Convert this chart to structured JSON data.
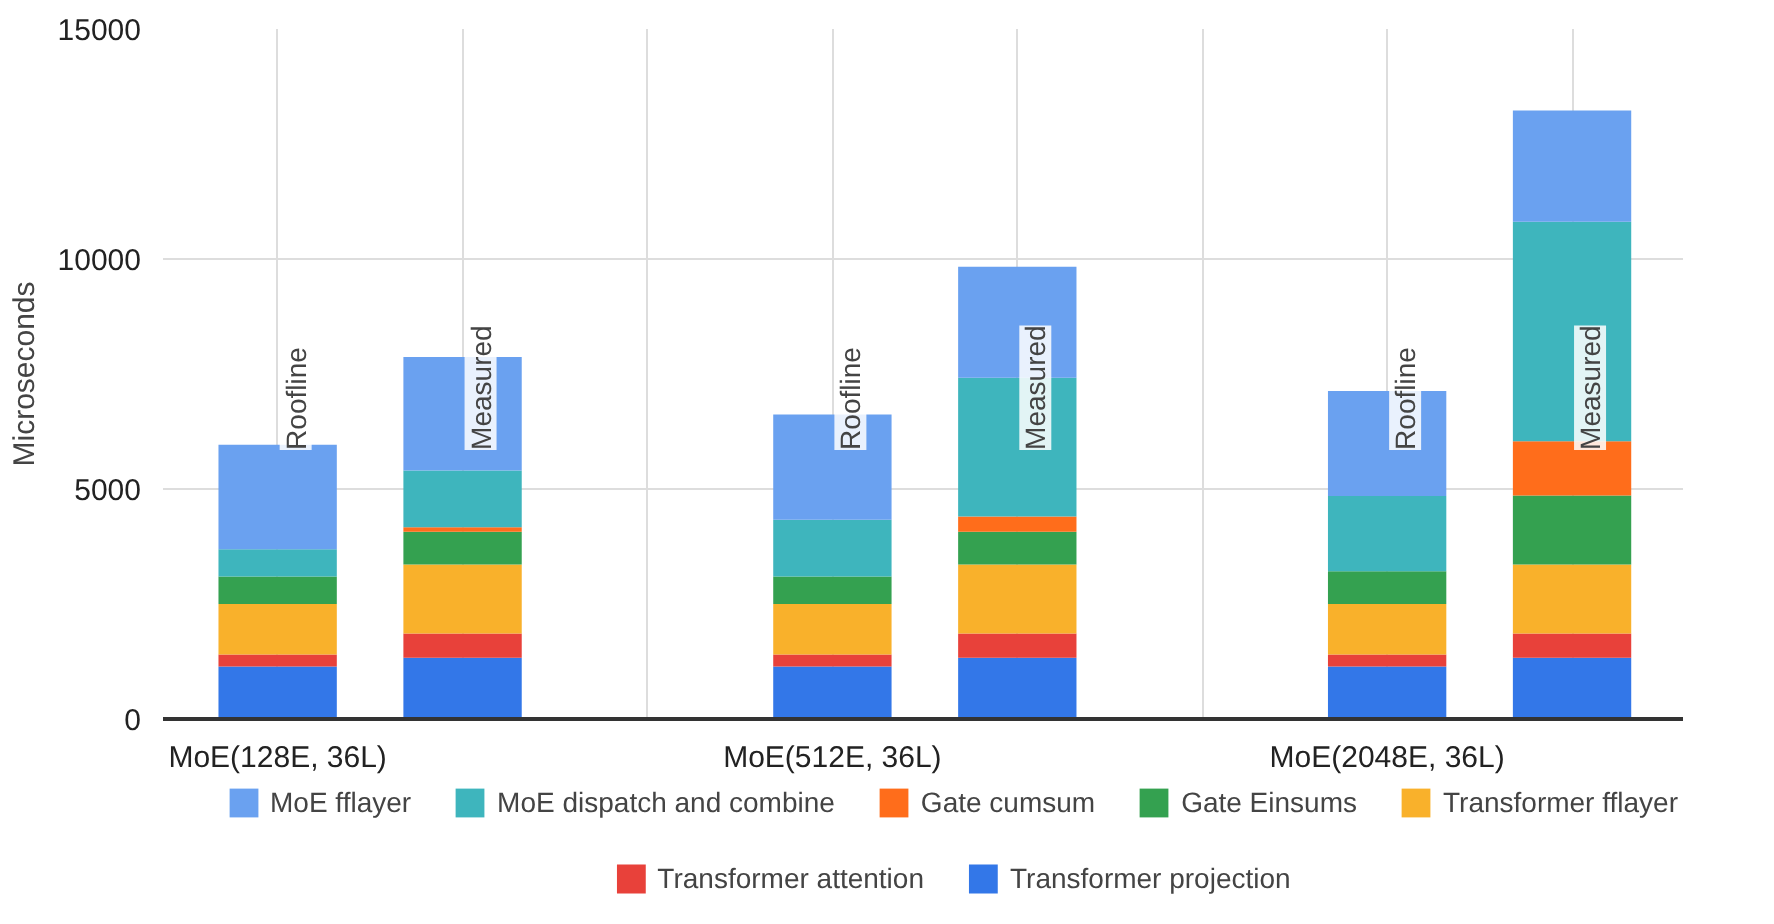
{
  "chart_data": {
    "type": "bar",
    "stacked": true,
    "ylabel": "Microseconds",
    "categories": [
      "MoE(128E, 36L)",
      null,
      null,
      "MoE(512E, 36L)",
      null,
      null,
      "MoE(2048E, 36L)",
      null
    ],
    "ylim": [
      0,
      15000
    ],
    "yticks": [
      0,
      5000,
      10000,
      15000
    ],
    "grid": true,
    "legend": "bottom",
    "series": [
      {
        "name": "Transformer projection",
        "color": "#3377e8",
        "values": [
          1140,
          1330,
          null,
          1140,
          1330,
          null,
          1140,
          1330
        ]
      },
      {
        "name": "Transformer attention",
        "color": "#e8413a",
        "values": [
          260,
          530,
          null,
          260,
          530,
          null,
          260,
          530
        ]
      },
      {
        "name": "Transformer fflayer",
        "color": "#f9b12b",
        "values": [
          1100,
          1500,
          null,
          1100,
          1500,
          null,
          1100,
          1500
        ]
      },
      {
        "name": "Gate Einsums",
        "color": "#34a150",
        "values": [
          600,
          710,
          null,
          600,
          710,
          null,
          710,
          1500
        ]
      },
      {
        "name": "Gate cumsum",
        "color": "#ff6d1b",
        "values": [
          0,
          100,
          null,
          0,
          330,
          null,
          0,
          1180
        ]
      },
      {
        "name": "MoE dispatch and combine",
        "color": "#3eb5bd",
        "values": [
          590,
          1230,
          null,
          1230,
          3020,
          null,
          1640,
          4770
        ]
      },
      {
        "name": "MoE fflayer",
        "color": "#6aa1f0",
        "values": [
          2270,
          2470,
          null,
          2290,
          2410,
          null,
          2280,
          2420
        ]
      }
    ],
    "annotations": [
      "Roofline",
      "Measured",
      "Roofline",
      "Measured",
      "Roofline",
      "Measured"
    ]
  }
}
